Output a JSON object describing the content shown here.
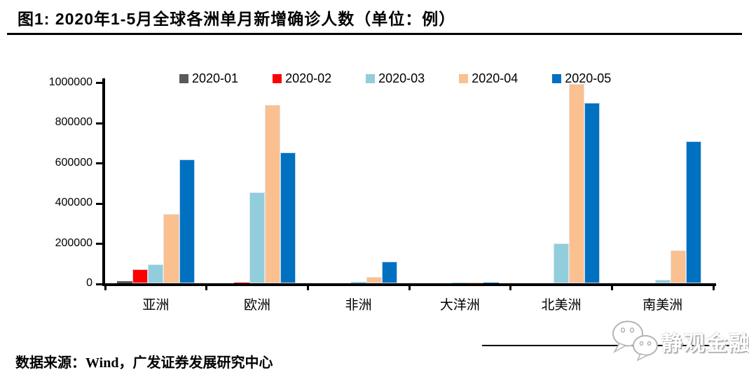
{
  "title": "图1: 2020年1-5月全球各洲单月新增确诊人数（单位：例）",
  "footer": {
    "source": "数据来源：Wind，广发证券发展研究中心"
  },
  "logo": {
    "text": "静观金融",
    "icon": "wechat-chat-bubbles"
  },
  "chart_data": {
    "type": "bar",
    "title": "2020年1-5月全球各洲单月新增确诊人数（单位：例）",
    "categories": [
      "亚洲",
      "欧洲",
      "非洲",
      "大洋洲",
      "北美洲",
      "南美洲"
    ],
    "series": [
      {
        "name": "2020-01",
        "color": "#595959",
        "values": [
          12000,
          0,
          0,
          0,
          0,
          0
        ]
      },
      {
        "name": "2020-02",
        "color": "#FF0000",
        "values": [
          71000,
          1000,
          0,
          0,
          0,
          0
        ]
      },
      {
        "name": "2020-03",
        "color": "#92CDDC",
        "values": [
          94000,
          452000,
          6000,
          5000,
          200000,
          17000
        ]
      },
      {
        "name": "2020-04",
        "color": "#FAC090",
        "values": [
          343000,
          887000,
          32000,
          3000,
          990000,
          164000
        ]
      },
      {
        "name": "2020-05",
        "color": "#0070C0",
        "values": [
          615000,
          650000,
          108000,
          1500,
          897000,
          706000
        ]
      }
    ],
    "ylim": [
      0,
      1000000
    ],
    "yticks": [
      1000000,
      800000,
      600000,
      400000,
      200000,
      0
    ],
    "xlabel": "",
    "ylabel": "",
    "unit": "例",
    "grid": false,
    "legend_position": "top"
  }
}
